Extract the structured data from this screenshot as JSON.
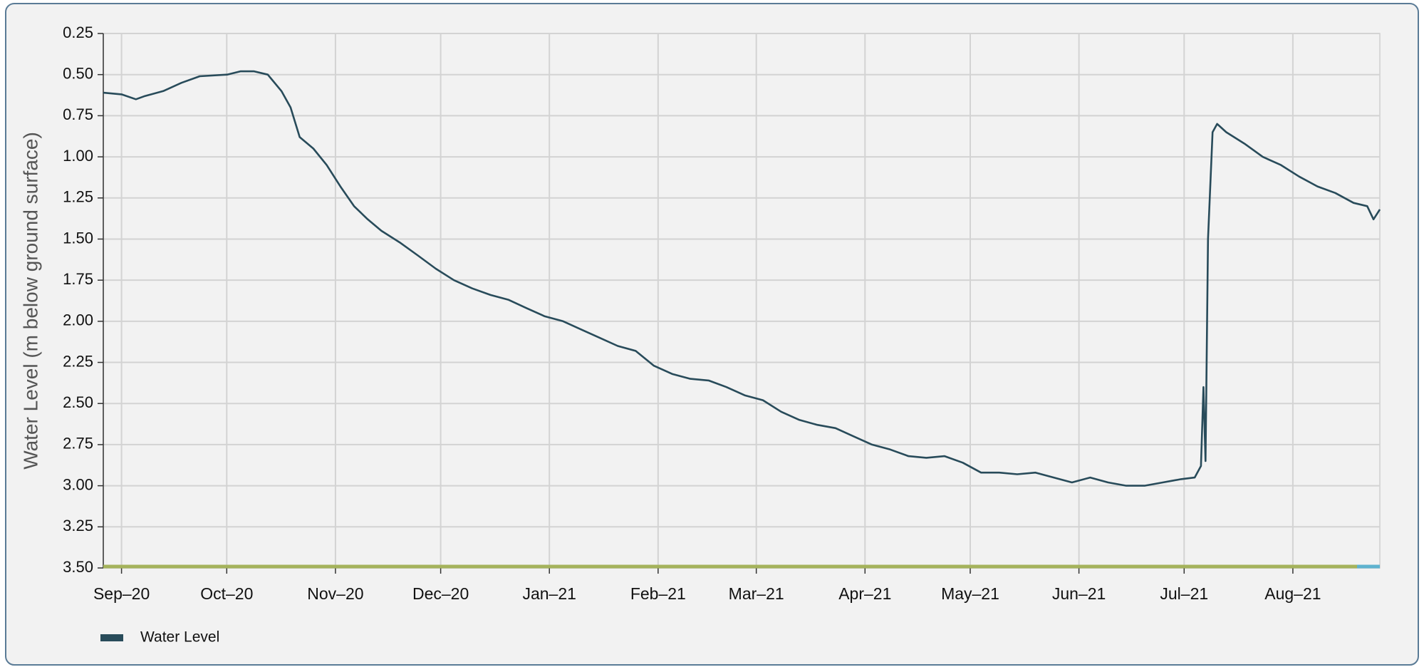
{
  "chart_data": {
    "type": "line",
    "y_label": "Water Level (m below ground surface)",
    "y_inverted": true,
    "grid": true,
    "legend": "bottom-left",
    "xlim": [
      -5.2,
      358.8
    ],
    "xticks": [
      {
        "value": 0,
        "label": "Sep–20"
      },
      {
        "value": 30,
        "label": "Oct–20"
      },
      {
        "value": 61,
        "label": "Nov–20"
      },
      {
        "value": 91,
        "label": "Dec–20"
      },
      {
        "value": 122,
        "label": "Jan–21"
      },
      {
        "value": 153,
        "label": "Feb–21"
      },
      {
        "value": 181,
        "label": "Mar–21"
      },
      {
        "value": 212,
        "label": "Apr–21"
      },
      {
        "value": 242,
        "label": "May–21"
      },
      {
        "value": 273,
        "label": "Jun–21"
      },
      {
        "value": 303,
        "label": "Jul–21"
      },
      {
        "value": 334,
        "label": "Aug–21"
      }
    ],
    "ylim": [
      0.25,
      3.5
    ],
    "yticks": [
      0.25,
      {
        "value": 0.5,
        "label": "0.50"
      },
      0.75,
      {
        "value": 1,
        "label": "1.00"
      },
      1.25,
      {
        "value": 1.5,
        "label": "1.50"
      },
      1.75,
      {
        "value": 2,
        "label": "2.00"
      },
      2.25,
      {
        "value": 2.5,
        "label": "2.50"
      },
      2.75,
      {
        "value": 3,
        "label": "3.00"
      },
      3.25,
      {
        "value": 3.5,
        "label": "3.50"
      }
    ],
    "x": [
      -5.2,
      0,
      4.1,
      6.7,
      11.9,
      17.1,
      22.3,
      30.1,
      33.9,
      37.8,
      41.7,
      45.6,
      48.2,
      50.8,
      54.7,
      58.5,
      62.4,
      66.3,
      70.2,
      74.1,
      79.3,
      84.5,
      89.6,
      94.8,
      100,
      105.2,
      110.4,
      115.5,
      120.7,
      125.9,
      131.1,
      136.3,
      141.5,
      146.6,
      151.8,
      157,
      162.2,
      167.4,
      172.5,
      177.7,
      182.9,
      188.1,
      193.3,
      198.4,
      203.6,
      208.8,
      214,
      219.2,
      224.4,
      229.5,
      234.7,
      239.9,
      245.1,
      250.3,
      255.4,
      260.6,
      265.8,
      271,
      276.2,
      281.3,
      286.5,
      291.7,
      296.9,
      299.5,
      302.1,
      306,
      307.8,
      308.5,
      309.1,
      309.8,
      311.1,
      312.4,
      315,
      320.2,
      325.4,
      330.6,
      335.8,
      341,
      346.1,
      351.3,
      355.2,
      357,
      358.8
    ],
    "series": [
      {
        "name": "Water Level",
        "color": "#284b5a",
        "values": [
          0.61,
          0.62,
          0.65,
          0.63,
          0.6,
          0.55,
          0.51,
          0.5,
          0.48,
          0.48,
          0.5,
          0.6,
          0.7,
          0.88,
          0.95,
          1.05,
          1.18,
          1.3,
          1.38,
          1.45,
          1.52,
          1.6,
          1.68,
          1.75,
          1.8,
          1.84,
          1.87,
          1.92,
          1.97,
          2.0,
          2.05,
          2.1,
          2.15,
          2.18,
          2.27,
          2.32,
          2.35,
          2.36,
          2.4,
          2.45,
          2.48,
          2.55,
          2.6,
          2.63,
          2.65,
          2.7,
          2.75,
          2.78,
          2.82,
          2.83,
          2.82,
          2.86,
          2.92,
          2.92,
          2.93,
          2.92,
          2.95,
          2.98,
          2.95,
          2.98,
          3.0,
          3.0,
          2.98,
          2.97,
          2.96,
          2.95,
          2.88,
          2.4,
          2.85,
          1.5,
          0.85,
          0.8,
          0.85,
          0.92,
          1.0,
          1.05,
          1.12,
          1.18,
          1.22,
          1.28,
          1.3,
          1.38,
          1.32
        ]
      }
    ]
  }
}
